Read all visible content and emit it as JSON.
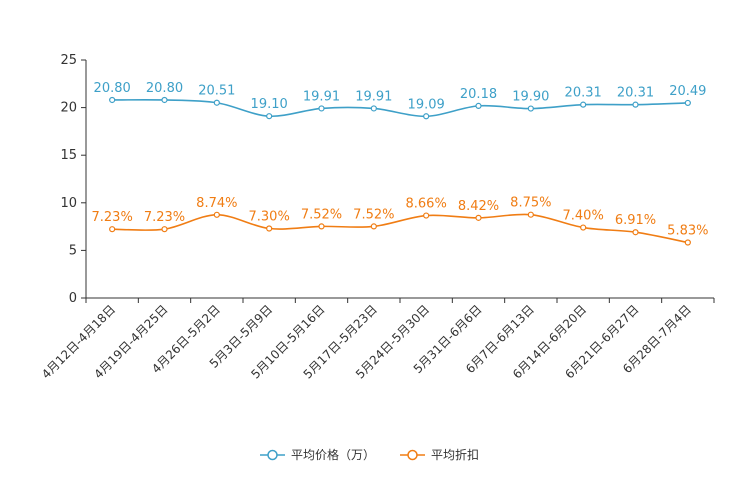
{
  "chart_data": {
    "type": "line",
    "categories": [
      "4月12日-4月18日",
      "4月19日-4月25日",
      "4月26日-5月2日",
      "5月3日-5月9日",
      "5月10日-5月16日",
      "5月17日-5月23日",
      "5月24日-5月30日",
      "5月31日-6月6日",
      "6月7日-6月13日",
      "6月14日-6月20日",
      "6月21日-6月27日",
      "6月28日-7月4日"
    ],
    "ylim": [
      0,
      25
    ],
    "yticks": [
      0,
      5,
      10,
      15,
      20,
      25
    ],
    "series": [
      {
        "name": "平均价格（万）",
        "color": "#3ea0c8",
        "values": [
          20.8,
          20.8,
          20.51,
          19.1,
          19.91,
          19.91,
          19.09,
          20.18,
          19.9,
          20.31,
          20.31,
          20.49
        ],
        "labels": [
          "20.80",
          "20.80",
          "20.51",
          "19.10",
          "19.91",
          "19.91",
          "19.09",
          "20.18",
          "19.90",
          "20.31",
          "20.31",
          "20.49"
        ]
      },
      {
        "name": "平均折扣",
        "color": "#f07d14",
        "values": [
          7.23,
          7.23,
          8.74,
          7.3,
          7.52,
          7.52,
          8.66,
          8.42,
          8.75,
          7.4,
          6.91,
          5.83
        ],
        "labels": [
          "7.23%",
          "7.23%",
          "8.74%",
          "7.30%",
          "7.52%",
          "7.52%",
          "8.66%",
          "8.42%",
          "8.75%",
          "7.40%",
          "6.91%",
          "5.83%"
        ]
      }
    ],
    "legend_position": "bottom-center"
  }
}
